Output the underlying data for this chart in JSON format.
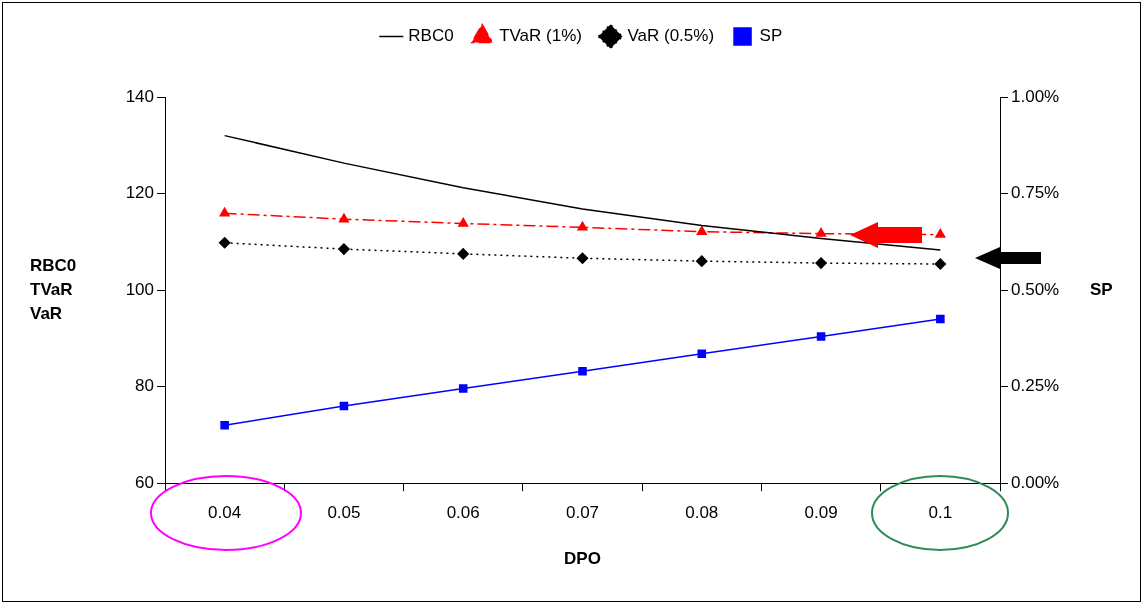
{
  "chart_data": {
    "type": "line",
    "categories": [
      "0.04",
      "0.05",
      "0.06",
      "0.07",
      "0.08",
      "0.09",
      "0.1"
    ],
    "xlabel": "DPO",
    "ylabel": "RBC0\nTVaR\nVaR",
    "y2label": "SP",
    "series": [
      {
        "name": "RBC0",
        "color": "#000000",
        "line_style": "solid",
        "marker": "none",
        "values": [
          132,
          126.3,
          121.2,
          116.8,
          113.4,
          110.7,
          108.3
        ]
      },
      {
        "name": "TVaR (1%)",
        "color": "#ff0000",
        "line_style": "dashed",
        "marker": "triangle",
        "values": [
          115.9,
          114.7,
          113.8,
          113,
          112.1,
          111.7,
          111.5
        ]
      },
      {
        "name": "VaR (0.5%)",
        "color": "#000000",
        "line_style": "dotted",
        "marker": "diamond",
        "values": [
          109.8,
          108.5,
          107.5,
          106.6,
          106,
          105.6,
          105.4
        ]
      },
      {
        "name": "SP",
        "color": "#0000ff",
        "line_style": "solid",
        "marker": "square",
        "axis": "y2",
        "values": [
          0.15,
          0.2,
          0.245,
          0.29,
          0.335,
          0.38,
          0.425
        ]
      }
    ],
    "ylim": [
      60,
      140
    ],
    "yticks": [
      60,
      80,
      100,
      120,
      140
    ],
    "y2lim": [
      0,
      1
    ],
    "y2ticks": [
      {
        "value": 0,
        "label": "0.00%"
      },
      {
        "value": 0.25,
        "label": "0.25%"
      },
      {
        "value": 0.5,
        "label": "0.50%"
      },
      {
        "value": 0.75,
        "label": "0.75%"
      },
      {
        "value": 1,
        "label": "1.00%"
      }
    ],
    "grid": false,
    "legend": "top"
  }
}
